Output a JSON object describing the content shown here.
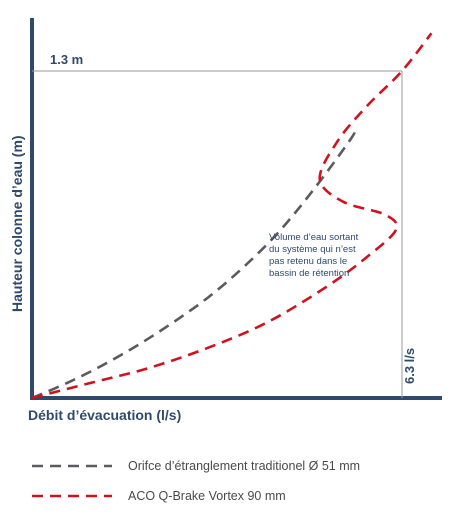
{
  "chart_data": {
    "type": "line",
    "title": "",
    "xlabel": "Débit d’évacuation (l/s)",
    "ylabel": "Hauteur colonne d’eau (m)",
    "xlim": [
      0,
      6.3
    ],
    "ylim": [
      0,
      1.3
    ],
    "reference_lines": {
      "height_label": "1.3 m",
      "height_value": 1.3,
      "flow_label": "6.3 l/s",
      "flow_value": 6.3
    },
    "annotation": "Volume d’eau sortant du système qui n’est pas retenu dans le bassin de rétention",
    "annotation_lines": [
      "Volume d’eau sortant",
      "du système qui n’est",
      "pas retenu dans le",
      "bassin de rétention"
    ],
    "series": [
      {
        "name": "Orifce d’étranglement traditionel Ø 51 mm",
        "color": "#5b5b5f",
        "dash": "dashed",
        "x": [
          0,
          0.6,
          1.2,
          1.8,
          2.4,
          3.0,
          3.6,
          4.2,
          4.8,
          5.4,
          5.5
        ],
        "y": [
          0,
          0.06,
          0.13,
          0.21,
          0.3,
          0.4,
          0.52,
          0.66,
          0.83,
          1.02,
          1.06
        ]
      },
      {
        "name": "ACO Q-Brake Vortex 90 mm",
        "color": "#d0121f",
        "dash": "dashed",
        "x": [
          0,
          1.0,
          2.0,
          3.0,
          4.0,
          5.0,
          5.7,
          6.2,
          6.0,
          5.3,
          4.9,
          5.2,
          5.7,
          6.3,
          6.8
        ],
        "y": [
          0,
          0.06,
          0.12,
          0.2,
          0.3,
          0.44,
          0.56,
          0.67,
          0.73,
          0.78,
          0.87,
          1.02,
          1.16,
          1.3,
          1.45
        ]
      }
    ],
    "legend": {
      "placement": "bottom"
    },
    "grid": false
  }
}
